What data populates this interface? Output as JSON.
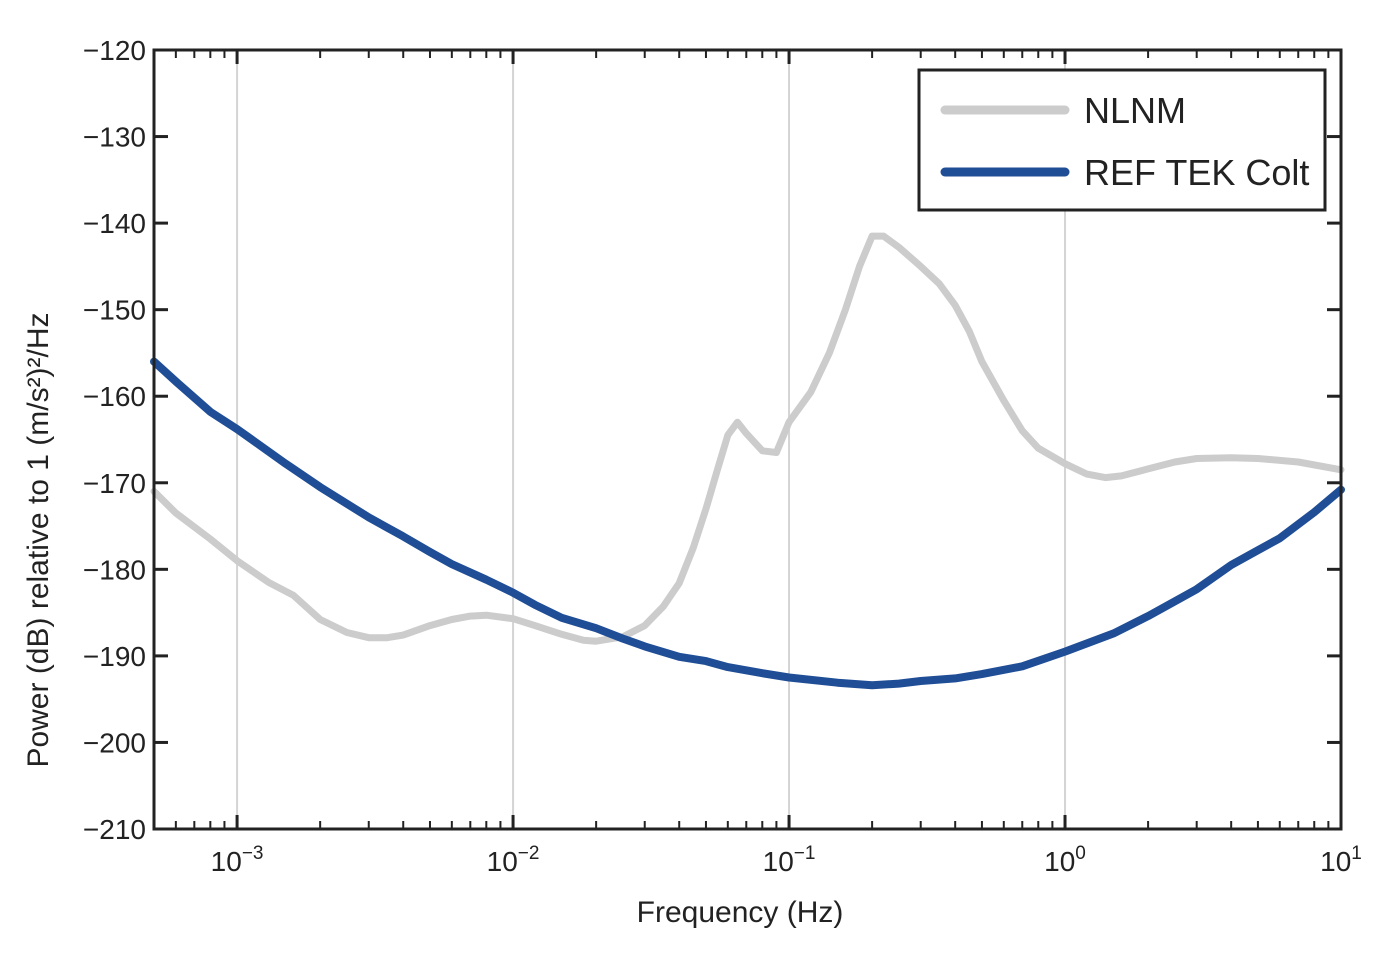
{
  "chart_data": {
    "type": "line",
    "title": "",
    "xlabel": "Frequency (Hz)",
    "ylabel": "Power (dB) relative to 1 (m/s²)²/Hz",
    "xscale": "log",
    "xlim": [
      0.0005,
      10
    ],
    "ylim": [
      -210,
      -120
    ],
    "x_ticks": [
      {
        "value": 0.001,
        "base": "10",
        "exp": "−3"
      },
      {
        "value": 0.01,
        "base": "10",
        "exp": "−2"
      },
      {
        "value": 0.1,
        "base": "10",
        "exp": "−1"
      },
      {
        "value": 1,
        "base": "10",
        "exp": "0"
      },
      {
        "value": 10,
        "base": "10",
        "exp": "1"
      }
    ],
    "y_ticks": [
      {
        "value": -120,
        "label": "−120"
      },
      {
        "value": -130,
        "label": "−130"
      },
      {
        "value": -140,
        "label": "−140"
      },
      {
        "value": -150,
        "label": "−150"
      },
      {
        "value": -160,
        "label": "−160"
      },
      {
        "value": -170,
        "label": "−170"
      },
      {
        "value": -180,
        "label": "−180"
      },
      {
        "value": -190,
        "label": "−190"
      },
      {
        "value": -200,
        "label": "−200"
      },
      {
        "value": -210,
        "label": "−210"
      }
    ],
    "grid": "vertical-major",
    "legend_position": "top-right",
    "series": [
      {
        "name": "NLNM",
        "color": "#cccccc",
        "points": [
          [
            0.0005,
            -171
          ],
          [
            0.0006,
            -173.5
          ],
          [
            0.0008,
            -176.5
          ],
          [
            0.001,
            -179
          ],
          [
            0.0013,
            -181.5
          ],
          [
            0.0016,
            -183
          ],
          [
            0.002,
            -185.8
          ],
          [
            0.0025,
            -187.3
          ],
          [
            0.003,
            -187.9
          ],
          [
            0.0035,
            -187.9
          ],
          [
            0.004,
            -187.6
          ],
          [
            0.005,
            -186.5
          ],
          [
            0.006,
            -185.8
          ],
          [
            0.007,
            -185.4
          ],
          [
            0.008,
            -185.3
          ],
          [
            0.01,
            -185.7
          ],
          [
            0.012,
            -186.5
          ],
          [
            0.015,
            -187.5
          ],
          [
            0.018,
            -188.2
          ],
          [
            0.02,
            -188.3
          ],
          [
            0.025,
            -187.8
          ],
          [
            0.03,
            -186.5
          ],
          [
            0.035,
            -184.3
          ],
          [
            0.04,
            -181.6
          ],
          [
            0.045,
            -177.5
          ],
          [
            0.05,
            -173
          ],
          [
            0.055,
            -168.5
          ],
          [
            0.06,
            -164.5
          ],
          [
            0.065,
            -163
          ],
          [
            0.07,
            -164.3
          ],
          [
            0.08,
            -166.3
          ],
          [
            0.09,
            -166.5
          ],
          [
            0.1,
            -163
          ],
          [
            0.12,
            -159.5
          ],
          [
            0.14,
            -155
          ],
          [
            0.16,
            -150
          ],
          [
            0.18,
            -145
          ],
          [
            0.2,
            -141.5
          ],
          [
            0.22,
            -141.5
          ],
          [
            0.25,
            -142.8
          ],
          [
            0.3,
            -145
          ],
          [
            0.35,
            -147
          ],
          [
            0.4,
            -149.5
          ],
          [
            0.45,
            -152.5
          ],
          [
            0.5,
            -156
          ],
          [
            0.6,
            -160.5
          ],
          [
            0.7,
            -164
          ],
          [
            0.8,
            -166
          ],
          [
            1,
            -167.8
          ],
          [
            1.2,
            -169
          ],
          [
            1.4,
            -169.4
          ],
          [
            1.6,
            -169.2
          ],
          [
            2,
            -168.4
          ],
          [
            2.5,
            -167.6
          ],
          [
            3,
            -167.2
          ],
          [
            4,
            -167.1
          ],
          [
            5,
            -167.2
          ],
          [
            7,
            -167.6
          ],
          [
            10,
            -168.5
          ]
        ]
      },
      {
        "name": "REF TEK Colt",
        "color": "#1f4e96",
        "points": [
          [
            0.0005,
            -156
          ],
          [
            0.0006,
            -158.3
          ],
          [
            0.0008,
            -161.8
          ],
          [
            0.001,
            -163.8
          ],
          [
            0.0015,
            -167.8
          ],
          [
            0.002,
            -170.5
          ],
          [
            0.003,
            -174
          ],
          [
            0.004,
            -176.2
          ],
          [
            0.005,
            -178
          ],
          [
            0.006,
            -179.4
          ],
          [
            0.008,
            -181.2
          ],
          [
            0.01,
            -182.7
          ],
          [
            0.012,
            -184.1
          ],
          [
            0.015,
            -185.6
          ],
          [
            0.02,
            -186.8
          ],
          [
            0.025,
            -188
          ],
          [
            0.03,
            -188.9
          ],
          [
            0.04,
            -190.1
          ],
          [
            0.05,
            -190.6
          ],
          [
            0.06,
            -191.3
          ],
          [
            0.08,
            -192
          ],
          [
            0.1,
            -192.5
          ],
          [
            0.15,
            -193.1
          ],
          [
            0.2,
            -193.4
          ],
          [
            0.25,
            -193.2
          ],
          [
            0.3,
            -192.9
          ],
          [
            0.4,
            -192.6
          ],
          [
            0.5,
            -192.1
          ],
          [
            0.7,
            -191.2
          ],
          [
            1,
            -189.5
          ],
          [
            1.5,
            -187.4
          ],
          [
            2,
            -185.4
          ],
          [
            3,
            -182.3
          ],
          [
            4,
            -179.5
          ],
          [
            5,
            -177.8
          ],
          [
            6,
            -176.4
          ],
          [
            8,
            -173.4
          ],
          [
            10,
            -170.8
          ]
        ]
      }
    ]
  }
}
